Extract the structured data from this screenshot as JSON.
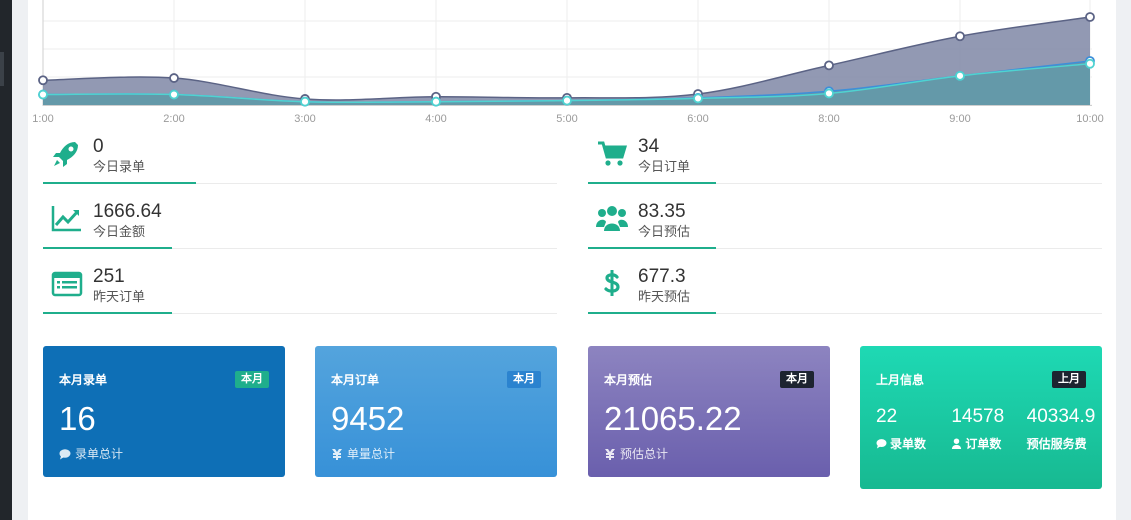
{
  "colors": {
    "accent": "#1fae8c",
    "series_a_fill": "#7f87a6",
    "series_a_line": "#5b6385",
    "series_b_line": "#4fd3d1",
    "series_c_line": "#3d8fd9"
  },
  "chart_data": {
    "type": "area",
    "title": "",
    "xlabel": "",
    "ylabel": "",
    "categories": [
      "1:00",
      "2:00",
      "3:00",
      "4:00",
      "5:00",
      "6:00",
      "8:00",
      "9:00",
      "10:00"
    ],
    "grid": true,
    "legend": "none",
    "series": [
      {
        "values": [
          45,
          49,
          11,
          15,
          13,
          20,
          72,
          125,
          160
        ]
      },
      {
        "values": [
          19,
          19,
          6,
          6,
          8,
          13,
          25,
          53,
          80
        ]
      },
      {
        "values": [
          19,
          19,
          6,
          6,
          8,
          12,
          21,
          53,
          75
        ]
      }
    ]
  },
  "stats": [
    {
      "icon": "rocket-icon",
      "value": "0",
      "label": "今日录单"
    },
    {
      "icon": "cart-icon",
      "value": "34",
      "label": "今日订单"
    },
    {
      "icon": "line-chart-icon",
      "value": "1666.64",
      "label": "今日金额"
    },
    {
      "icon": "users-icon",
      "value": "83.35",
      "label": "今日预估"
    },
    {
      "icon": "list-icon",
      "value": "251",
      "label": "昨天订单"
    },
    {
      "icon": "dollar-icon",
      "value": "677.3",
      "label": "昨天预估"
    }
  ],
  "cards": [
    {
      "title": "本月录单",
      "badge": "本月",
      "value": "16",
      "footer": "录单总计",
      "icon": "comment-icon"
    },
    {
      "title": "本月订单",
      "badge": "本月",
      "value": "9452",
      "footer": "单量总计",
      "icon": "coins-icon"
    },
    {
      "title": "本月预估",
      "badge": "本月",
      "value": "21065.22",
      "footer": "预估总计",
      "icon": "coins-icon"
    },
    {
      "title": "上月信息",
      "badge": "上月",
      "columns": [
        {
          "value": "22",
          "label": "录单数",
          "icon": "comment-icon"
        },
        {
          "value": "14578",
          "label": "订单数",
          "icon": "user-icon"
        },
        {
          "value": "40334.9",
          "label": "预估服务费",
          "icon": ""
        }
      ]
    }
  ]
}
